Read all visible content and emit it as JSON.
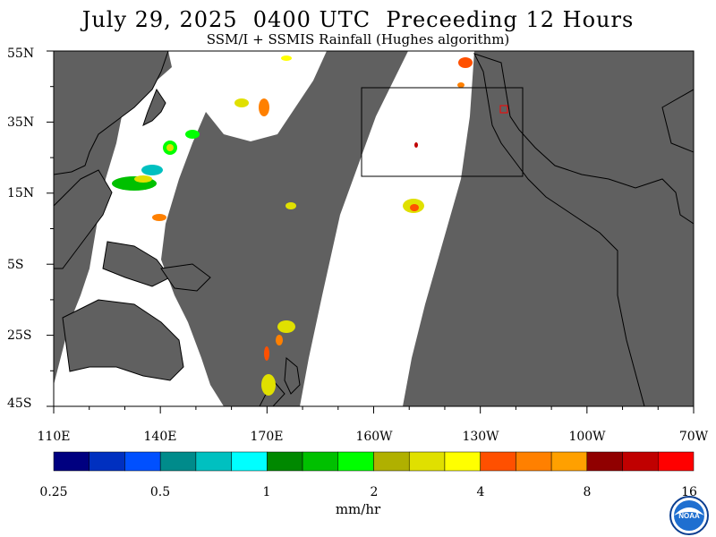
{
  "title": "July 29, 2025  0400 UTC  Preceeding 12 Hours",
  "subtitle": "SSM/I + SSMIS Rainfall (Hughes algorithm)",
  "lat_labels": [
    "55N",
    "35N",
    "15N",
    "5S",
    "25S",
    "45S"
  ],
  "lon_labels": [
    "110E",
    "140E",
    "170E",
    "160W",
    "130W",
    "100W",
    "70W"
  ],
  "colorbar": {
    "units": "mm/hr",
    "tick_labels": [
      "0.25",
      "0.5",
      "1",
      "2",
      "4",
      "8",
      "16"
    ],
    "colors": [
      "#000080",
      "#0030c0",
      "#0050ff",
      "#008b8b",
      "#00c0c0",
      "#00ffff",
      "#008800",
      "#00c000",
      "#00ff00",
      "#b0b000",
      "#e0e000",
      "#ffff00",
      "#ff5000",
      "#ff8000",
      "#ffa000",
      "#900000",
      "#c00000",
      "#ff0000"
    ]
  },
  "colors": {
    "land": "#606060",
    "no_data": "#606060",
    "coast": "#000000",
    "box": "#000000",
    "highlight": "#ff0000"
  },
  "logo": {
    "icon": "noaa-logo-icon",
    "text": "NOAA"
  }
}
